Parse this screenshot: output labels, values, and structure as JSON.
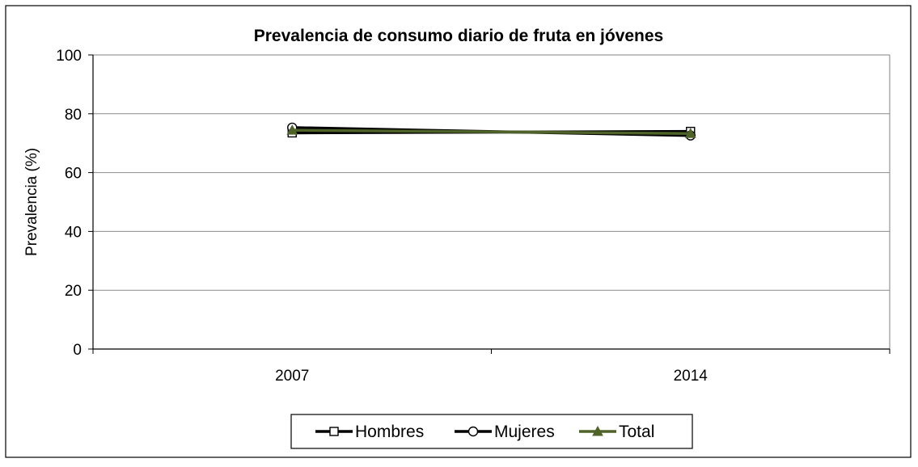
{
  "chart_data": {
    "type": "line",
    "title": "Prevalencia de consumo diario de fruta en jóvenes",
    "xlabel": "",
    "ylabel": "Prevalencia (%)",
    "categories": [
      "2007",
      "2014"
    ],
    "ylim": [
      0,
      100
    ],
    "yticks": [
      0,
      20,
      40,
      60,
      80,
      100
    ],
    "grid": true,
    "legend_position": "bottom",
    "series": [
      {
        "name": "Hombres",
        "values": [
          73.5,
          74.0
        ],
        "color": "#000000",
        "marker": "square"
      },
      {
        "name": "Mujeres",
        "values": [
          75.3,
          72.6
        ],
        "color": "#000000",
        "marker": "circle"
      },
      {
        "name": "Total",
        "values": [
          74.4,
          73.3
        ],
        "color": "#4f6228",
        "marker": "triangle"
      }
    ]
  }
}
